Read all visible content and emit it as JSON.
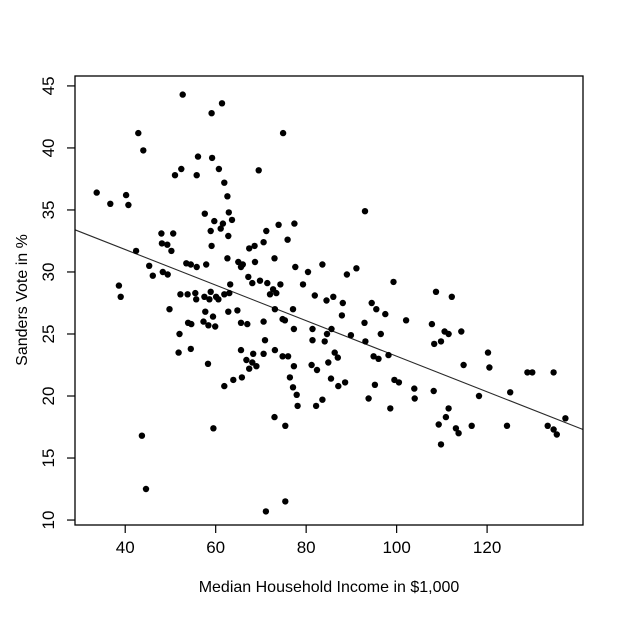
{
  "chart_data": {
    "type": "scatter",
    "title": "",
    "xlabel": "Median Household Income in $1,000",
    "ylabel": "Sanders Vote in %",
    "xlim": [
      28.9,
      141.2
    ],
    "ylim": [
      9.6,
      45.8
    ],
    "xticks": [
      40,
      60,
      80,
      100,
      120
    ],
    "yticks": [
      10,
      15,
      20,
      25,
      30,
      35,
      40,
      45
    ],
    "grid": false,
    "legend": null,
    "point_color": "#000000",
    "axis_color": "#000000",
    "line_color": "#2a2a2a",
    "regression_line": {
      "x1": 28.9,
      "y1": 33.4,
      "x2": 141.2,
      "y2": 17.3
    },
    "points": [
      [
        52.7,
        44.3
      ],
      [
        61.4,
        43.6
      ],
      [
        59.1,
        42.8
      ],
      [
        42.9,
        41.2
      ],
      [
        44.0,
        39.8
      ],
      [
        56.1,
        39.3
      ],
      [
        59.2,
        39.2
      ],
      [
        52.4,
        38.3
      ],
      [
        51.0,
        37.8
      ],
      [
        55.8,
        37.8
      ],
      [
        60.7,
        38.3
      ],
      [
        61.9,
        37.2
      ],
      [
        62.6,
        36.1
      ],
      [
        33.7,
        36.4
      ],
      [
        36.7,
        35.5
      ],
      [
        40.2,
        36.2
      ],
      [
        40.7,
        35.4
      ],
      [
        57.6,
        34.7
      ],
      [
        59.7,
        34.1
      ],
      [
        62.9,
        34.8
      ],
      [
        63.6,
        34.2
      ],
      [
        74.9,
        41.2
      ],
      [
        69.5,
        38.2
      ],
      [
        93.0,
        34.9
      ],
      [
        73.9,
        33.8
      ],
      [
        77.4,
        33.9
      ],
      [
        71.2,
        33.3
      ],
      [
        48.0,
        33.1
      ],
      [
        50.6,
        33.1
      ],
      [
        48.1,
        32.3
      ],
      [
        49.3,
        32.2
      ],
      [
        50.2,
        31.7
      ],
      [
        42.4,
        31.7
      ],
      [
        45.3,
        30.5
      ],
      [
        46.1,
        29.7
      ],
      [
        48.3,
        30.0
      ],
      [
        49.4,
        29.8
      ],
      [
        53.5,
        30.7
      ],
      [
        54.5,
        30.6
      ],
      [
        55.8,
        30.4
      ],
      [
        57.9,
        30.6
      ],
      [
        59.1,
        32.1
      ],
      [
        58.9,
        33.3
      ],
      [
        61.1,
        33.5
      ],
      [
        61.6,
        33.9
      ],
      [
        62.8,
        32.9
      ],
      [
        62.6,
        31.1
      ],
      [
        65.0,
        30.8
      ],
      [
        66.0,
        30.6
      ],
      [
        65.6,
        30.4
      ],
      [
        38.6,
        28.9
      ],
      [
        39.0,
        28.0
      ],
      [
        52.2,
        28.2
      ],
      [
        53.8,
        28.2
      ],
      [
        55.5,
        28.3
      ],
      [
        55.7,
        27.8
      ],
      [
        57.5,
        28.0
      ],
      [
        58.9,
        28.4
      ],
      [
        58.6,
        27.8
      ],
      [
        60.1,
        28.0
      ],
      [
        60.6,
        27.8
      ],
      [
        61.9,
        28.2
      ],
      [
        63.0,
        28.3
      ],
      [
        63.2,
        29.0
      ],
      [
        49.8,
        27.0
      ],
      [
        57.7,
        26.8
      ],
      [
        59.4,
        26.4
      ],
      [
        62.8,
        26.8
      ],
      [
        64.8,
        26.9
      ],
      [
        52.0,
        25.0
      ],
      [
        53.9,
        25.9
      ],
      [
        54.6,
        25.8
      ],
      [
        57.3,
        26.0
      ],
      [
        58.4,
        25.7
      ],
      [
        59.9,
        25.6
      ],
      [
        65.6,
        25.9
      ],
      [
        54.5,
        23.8
      ],
      [
        51.8,
        23.5
      ],
      [
        58.3,
        22.6
      ],
      [
        65.6,
        23.7
      ],
      [
        67.4,
        31.9
      ],
      [
        68.6,
        32.1
      ],
      [
        70.6,
        32.4
      ],
      [
        75.9,
        32.6
      ],
      [
        68.7,
        30.8
      ],
      [
        73.0,
        31.1
      ],
      [
        77.6,
        30.4
      ],
      [
        80.4,
        30.0
      ],
      [
        83.6,
        30.6
      ],
      [
        89.0,
        29.8
      ],
      [
        91.1,
        30.3
      ],
      [
        99.3,
        29.2
      ],
      [
        67.2,
        29.6
      ],
      [
        74.3,
        29.0
      ],
      [
        68.1,
        29.1
      ],
      [
        69.8,
        29.3
      ],
      [
        71.4,
        29.1
      ],
      [
        72.7,
        28.6
      ],
      [
        73.4,
        28.3
      ],
      [
        72.0,
        28.2
      ],
      [
        79.3,
        29.0
      ],
      [
        81.9,
        28.1
      ],
      [
        84.5,
        27.7
      ],
      [
        77.1,
        27.0
      ],
      [
        73.1,
        27.0
      ],
      [
        74.8,
        26.2
      ],
      [
        67.0,
        25.8
      ],
      [
        70.6,
        26.0
      ],
      [
        75.3,
        26.1
      ],
      [
        77.3,
        25.4
      ],
      [
        81.4,
        25.4
      ],
      [
        81.4,
        24.5
      ],
      [
        84.1,
        24.4
      ],
      [
        70.9,
        24.5
      ],
      [
        73.1,
        23.7
      ],
      [
        70.6,
        23.4
      ],
      [
        68.3,
        23.4
      ],
      [
        66.8,
        22.9
      ],
      [
        68.1,
        22.7
      ],
      [
        69.0,
        22.4
      ],
      [
        67.4,
        22.2
      ],
      [
        74.8,
        23.2
      ],
      [
        76.0,
        23.2
      ],
      [
        77.3,
        22.4
      ],
      [
        76.4,
        21.5
      ],
      [
        81.2,
        22.5
      ],
      [
        82.4,
        22.1
      ],
      [
        84.9,
        22.7
      ],
      [
        86.3,
        23.5
      ],
      [
        87.0,
        23.1
      ],
      [
        84.6,
        25.0
      ],
      [
        85.6,
        25.4
      ],
      [
        86.0,
        28.0
      ],
      [
        88.1,
        27.5
      ],
      [
        94.5,
        27.5
      ],
      [
        95.5,
        27.0
      ],
      [
        97.5,
        26.6
      ],
      [
        92.9,
        25.9
      ],
      [
        87.9,
        26.5
      ],
      [
        96.5,
        25.0
      ],
      [
        102.1,
        26.1
      ],
      [
        89.9,
        24.9
      ],
      [
        93.1,
        24.4
      ],
      [
        94.9,
        23.2
      ],
      [
        96.0,
        23.0
      ],
      [
        98.2,
        23.3
      ],
      [
        108.7,
        28.4
      ],
      [
        112.2,
        28.0
      ],
      [
        107.8,
        25.8
      ],
      [
        110.6,
        25.2
      ],
      [
        111.5,
        25.0
      ],
      [
        114.3,
        25.2
      ],
      [
        108.3,
        24.2
      ],
      [
        109.8,
        24.4
      ],
      [
        120.2,
        23.5
      ],
      [
        114.8,
        22.5
      ],
      [
        120.5,
        22.3
      ],
      [
        128.9,
        21.9
      ],
      [
        130.0,
        21.9
      ],
      [
        134.7,
        21.9
      ],
      [
        61.9,
        20.8
      ],
      [
        63.9,
        21.3
      ],
      [
        65.8,
        21.5
      ],
      [
        59.5,
        17.4
      ],
      [
        43.7,
        16.8
      ],
      [
        44.6,
        12.5
      ],
      [
        77.1,
        20.7
      ],
      [
        77.9,
        20.1
      ],
      [
        78.1,
        19.2
      ],
      [
        85.5,
        21.4
      ],
      [
        87.1,
        20.8
      ],
      [
        88.6,
        21.1
      ],
      [
        82.2,
        19.2
      ],
      [
        83.6,
        19.7
      ],
      [
        93.8,
        19.8
      ],
      [
        95.2,
        20.9
      ],
      [
        99.5,
        21.3
      ],
      [
        100.5,
        21.1
      ],
      [
        98.6,
        19.0
      ],
      [
        73.0,
        18.3
      ],
      [
        75.4,
        17.6
      ],
      [
        75.4,
        11.5
      ],
      [
        71.1,
        10.7
      ],
      [
        103.9,
        20.6
      ],
      [
        104.0,
        19.8
      ],
      [
        108.2,
        20.4
      ],
      [
        118.2,
        20.0
      ],
      [
        125.1,
        20.3
      ],
      [
        111.5,
        19.0
      ],
      [
        110.9,
        18.3
      ],
      [
        109.3,
        17.7
      ],
      [
        113.1,
        17.4
      ],
      [
        113.7,
        17.0
      ],
      [
        116.6,
        17.6
      ],
      [
        124.4,
        17.6
      ],
      [
        109.8,
        16.1
      ],
      [
        137.3,
        18.2
      ],
      [
        133.4,
        17.6
      ],
      [
        134.7,
        17.3
      ],
      [
        135.4,
        16.9
      ]
    ]
  }
}
